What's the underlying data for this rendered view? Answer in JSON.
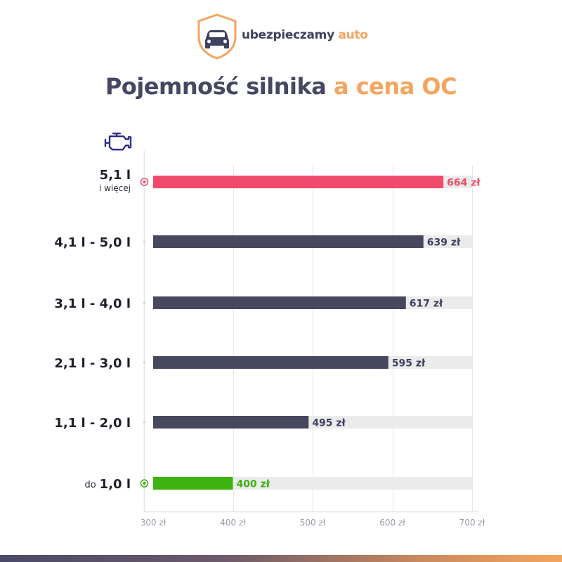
{
  "brand": {
    "name": "ubezpieczamy",
    "accent": "auto",
    "logo_icon": "shield-car-icon",
    "color_main": "#3f4160",
    "color_accent": "#f3a55f"
  },
  "title": {
    "main": "Pojemność silnika",
    "accent": "a cena OC"
  },
  "engine_icon": "engine-icon",
  "chart_data": {
    "type": "bar",
    "orientation": "horizontal",
    "categories": [
      {
        "label": "5,1 l",
        "sub": "i więcej",
        "prefix": ""
      },
      {
        "label": "4,1 l - 5,0 l",
        "sub": "",
        "prefix": ""
      },
      {
        "label": "3,1 l - 4,0 l",
        "sub": "",
        "prefix": ""
      },
      {
        "label": "2,1 l - 3,0 l",
        "sub": "",
        "prefix": ""
      },
      {
        "label": "1,1 l - 2,0 l",
        "sub": "",
        "prefix": ""
      },
      {
        "label": "1,0 l",
        "sub": "",
        "prefix": "do"
      }
    ],
    "values": [
      664,
      639,
      617,
      595,
      495,
      400
    ],
    "value_labels": [
      "664 zł",
      "639 zł",
      "617 zł",
      "595 zł",
      "495 zł",
      "400 zł"
    ],
    "xlim": [
      300,
      700
    ],
    "x_ticks": [
      300,
      400,
      500,
      600,
      700
    ],
    "x_tick_labels": [
      "300 zł",
      "400 zł",
      "500 zł",
      "600 zł",
      "700 zł"
    ],
    "grid": true,
    "colors": {
      "default": "#47475f",
      "max": "#f04b6a",
      "min": "#3db30f",
      "track": "#ebebeb",
      "grid": "#e6e6e6"
    },
    "highlight": {
      "max_index": 0,
      "min_index": 5
    }
  }
}
